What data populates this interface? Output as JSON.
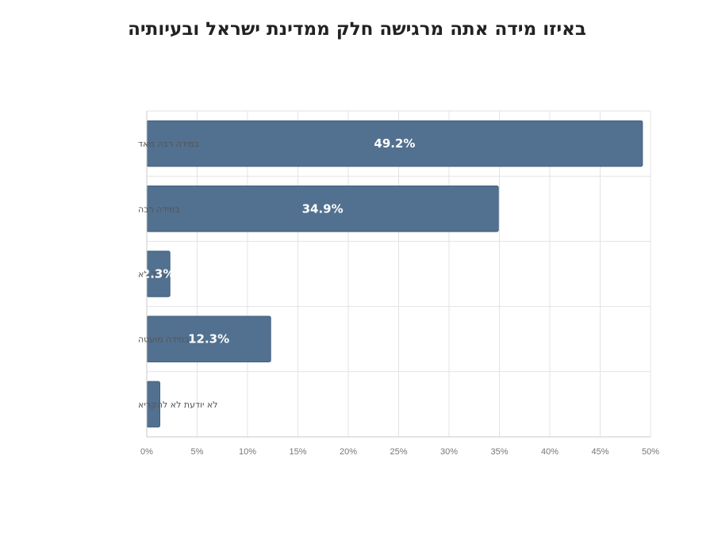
{
  "chart_data": {
    "type": "bar",
    "orientation": "horizontal",
    "title": "באיזו מידה אתה מרגישה חלק ממדינת ישראל ובעיותיה",
    "categories": [
      "במידה רבה מאד",
      "במידה רבה",
      "כלל לא",
      "במידה מועטה",
      "לא יודעת לא להקריא"
    ],
    "values": [
      49.2,
      34.9,
      2.3,
      12.3,
      1.3
    ],
    "data_labels": [
      "49.2%",
      "34.9%",
      "2.3%",
      "12.3%",
      ""
    ],
    "xlim": [
      0,
      50
    ],
    "x_ticks": [
      0,
      5,
      10,
      15,
      20,
      25,
      30,
      35,
      40,
      45,
      50
    ],
    "x_tick_labels": [
      "0%",
      "5%",
      "10%",
      "15%",
      "20%",
      "25%",
      "30%",
      "35%",
      "40%",
      "45%",
      "50%"
    ],
    "grid": true,
    "legend": "none",
    "bar_color": "#52708f"
  }
}
